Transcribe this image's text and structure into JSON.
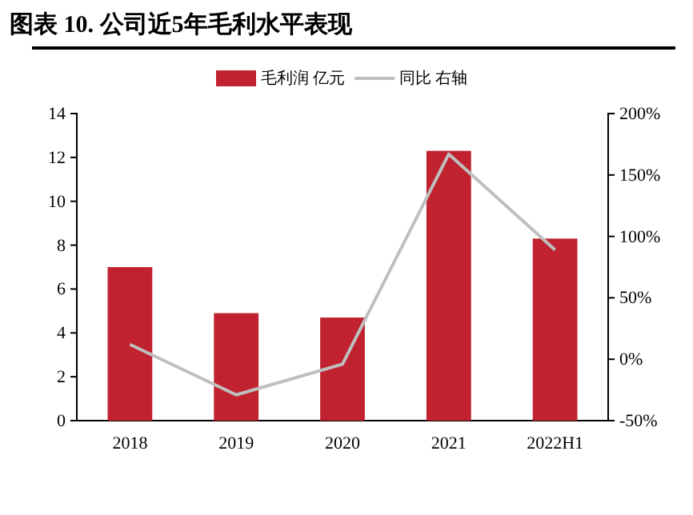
{
  "chart_data": {
    "type": "bar",
    "title": "图表 10. 公司近5年毛利水平表现",
    "categories": [
      "2018",
      "2019",
      "2020",
      "2021",
      "2022H1"
    ],
    "series": [
      {
        "name": "毛利润 亿元",
        "color": "#c0232f",
        "values": [
          7.0,
          4.9,
          4.7,
          12.3,
          8.3
        ]
      },
      {
        "name": "同比 右轴",
        "type": "line",
        "axis": "y2",
        "color": "#bfbfbf",
        "values": [
          12,
          -29,
          -4,
          167,
          89
        ]
      }
    ],
    "ylim": [
      0,
      14
    ],
    "yticks": [
      0,
      2,
      4,
      6,
      8,
      10,
      12,
      14
    ],
    "y2lim": [
      -50,
      200
    ],
    "y2ticks": [
      {
        "value": -50,
        "label": "-50%"
      },
      {
        "value": 0,
        "label": "0%"
      },
      {
        "value": 50,
        "label": "50%"
      },
      {
        "value": 100,
        "label": "100%"
      },
      {
        "value": 150,
        "label": "150%"
      },
      {
        "value": 200,
        "label": "200%"
      }
    ],
    "legend": "top",
    "grid": false,
    "marker": "none",
    "line_style": "solid"
  }
}
